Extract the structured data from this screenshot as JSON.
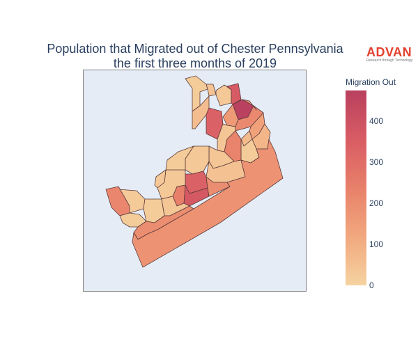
{
  "chart_data": {
    "type": "choropleth",
    "title_lines": [
      "Population that Migrated out of Chester Pennsylvania",
      "the first three months of 2019"
    ],
    "colorbar": {
      "title": "Migration Out",
      "ticks": [
        "0",
        "100",
        "200",
        "300",
        "400"
      ],
      "tick_values": [
        0,
        100,
        200,
        300,
        400
      ],
      "range": [
        0,
        475
      ],
      "colors": [
        "#f5d3a0",
        "#f2a87e",
        "#e8806a",
        "#d85c64",
        "#b9405f"
      ]
    },
    "regions": [
      {
        "id": "r1",
        "value": 20
      },
      {
        "id": "r2",
        "value": 45
      },
      {
        "id": "r3",
        "value": 30
      },
      {
        "id": "r4",
        "value": 60
      },
      {
        "id": "r5",
        "value": 340
      },
      {
        "id": "r6",
        "value": 470
      },
      {
        "id": "r7",
        "value": 360
      },
      {
        "id": "r8",
        "value": 160
      },
      {
        "id": "r9",
        "value": 210
      },
      {
        "id": "r10",
        "value": 40
      },
      {
        "id": "r11",
        "value": 140
      },
      {
        "id": "r12",
        "value": 70
      },
      {
        "id": "r13",
        "value": 80
      },
      {
        "id": "r14",
        "value": 20
      },
      {
        "id": "r15",
        "value": 230
      },
      {
        "id": "r16",
        "value": 40
      },
      {
        "id": "r17",
        "value": 30
      },
      {
        "id": "r18",
        "value": 50
      },
      {
        "id": "r19",
        "value": 340
      },
      {
        "id": "r20",
        "value": 370
      },
      {
        "id": "r21",
        "value": 240
      },
      {
        "id": "r22",
        "value": 200
      },
      {
        "id": "r23",
        "value": 30
      },
      {
        "id": "r24",
        "value": 25
      },
      {
        "id": "r25",
        "value": 20
      },
      {
        "id": "r26",
        "value": 220
      },
      {
        "id": "r27",
        "value": 20
      },
      {
        "id": "r28",
        "value": 40
      },
      {
        "id": "r29",
        "value": 200
      },
      {
        "id": "r30",
        "value": 180
      },
      {
        "id": "r31",
        "value": 30
      },
      {
        "id": "r32",
        "value": 20
      },
      {
        "id": "r33",
        "value": 160
      }
    ]
  },
  "brand": {
    "name": "ADVAN",
    "tagline": "Research through Technology",
    "color": "#e3402d"
  },
  "map_style": {
    "background": "#e5ecf6",
    "frame_color": "#7f7f7f",
    "border_color": "#5a3a3a"
  }
}
